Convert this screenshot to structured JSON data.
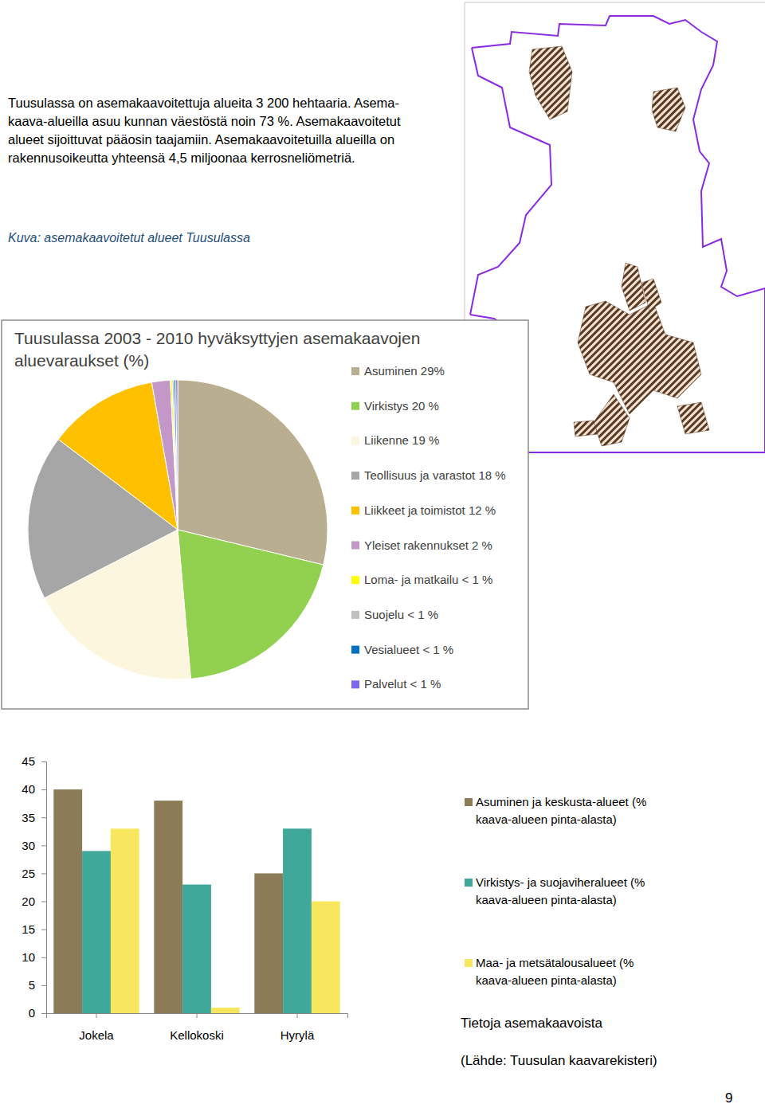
{
  "intro": {
    "lines": [
      "Tuusulassa on asemakaavoitettuja alueita 3 200 hehtaaria. Asema-",
      "kaava-alueilla asuu kunnan väestöstä noin 73 %. Asemakaavoitetut",
      "alueet sijoittuvat pääosin taajamiin. Asemakaavoitetuilla alueilla on",
      "rakennusoikeutta yhteensä 4,5 miljoonaa kerrosneliömetriä."
    ]
  },
  "map": {
    "caption": "Kuva: asemakaavoitetut alueet Tuusulassa"
  },
  "chart_data": [
    {
      "type": "pie",
      "title": "Tuusulassa 2003 - 2010 hyväksyttyjen asemakaavojen aluevaraukset (%)",
      "categories": [
        "Asuminen 29%",
        "Virkistys 20 %",
        "Liikenne 19 %",
        "Teollisuus ja varastot 18 %",
        "Liikkeet ja toimistot 12 %",
        "Yleiset rakennukset 2 %",
        "Loma- ja matkailu < 1 %",
        "Suojelu < 1 %",
        "Vesialueet < 1 %",
        "Palvelut < 1 %"
      ],
      "values": [
        29,
        20,
        19,
        18,
        12,
        2,
        0.2,
        0.2,
        0.2,
        0.2
      ],
      "colors": [
        "#b9ae8f",
        "#92d050",
        "#fdf6df",
        "#a6a6a6",
        "#ffc000",
        "#c497c9",
        "#ffff00",
        "#bfbfbf",
        "#0070c0",
        "#7b68ee"
      ],
      "legend": "right"
    },
    {
      "type": "bar",
      "title": "Tietoja asemakaavoista",
      "source": "(Lähde: Tuusulan kaavarekisteri)",
      "categories": [
        "Jokela",
        "Kellokoski",
        "Hyrylä"
      ],
      "series": [
        {
          "name": "Asuminen ja keskusta-alueet (% kaava-alueen pinta-alasta)",
          "color": "#8b7b57",
          "values": [
            40,
            38,
            25
          ]
        },
        {
          "name": "Virkistys- ja suojaviheralueet (% kaava-alueen pinta-alasta)",
          "color": "#3fa89a",
          "values": [
            29,
            23,
            33
          ]
        },
        {
          "name": "Maa- ja metsätalousalueet (% kaava-alueen pinta-alasta)",
          "color": "#f9e65f",
          "values": [
            33,
            1,
            20
          ]
        }
      ],
      "ylim": [
        0,
        45
      ],
      "yticks": [
        0,
        5,
        10,
        15,
        20,
        25,
        30,
        35,
        40,
        45
      ],
      "grid": false,
      "legend": "right"
    }
  ],
  "page_number": 9
}
